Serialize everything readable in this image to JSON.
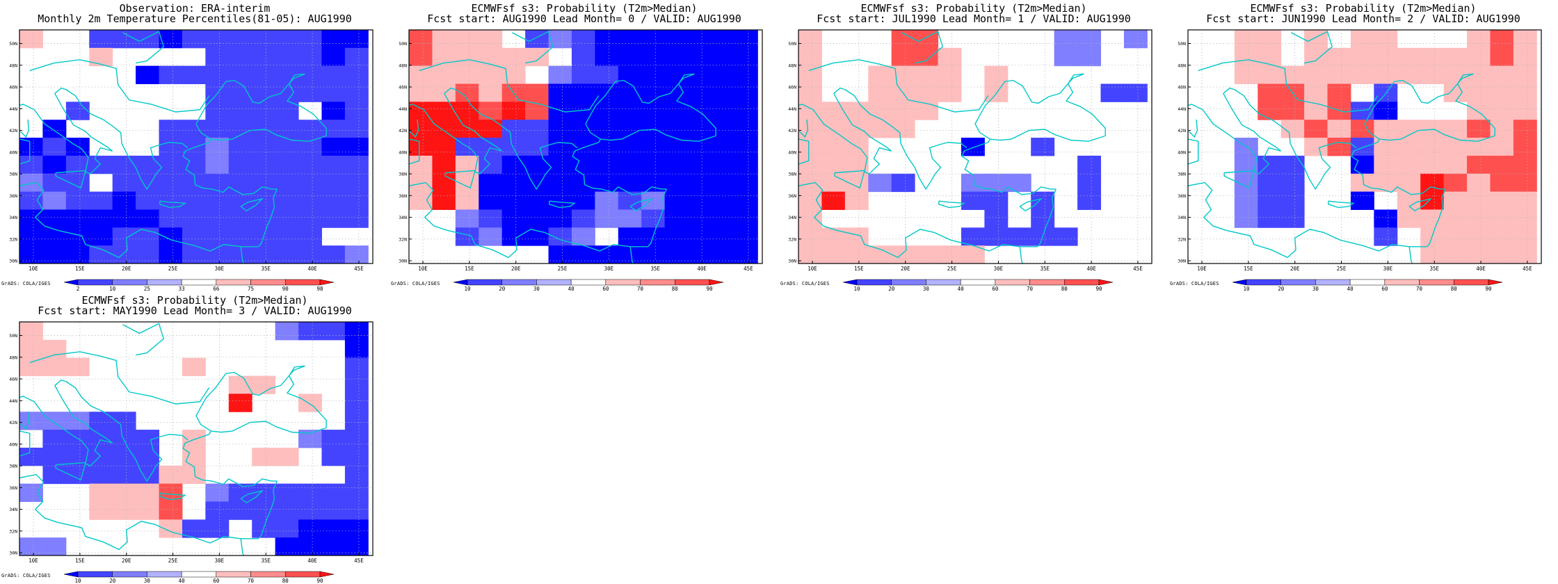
{
  "credit": "GrADS: COLA/IGES",
  "lon_ticks": [
    "10E",
    "15E",
    "20E",
    "25E",
    "30E",
    "35E",
    "40E",
    "45E"
  ],
  "lat_ticks": [
    "30N",
    "32N",
    "34N",
    "36N",
    "38N",
    "40N",
    "42N",
    "44N",
    "46N",
    "48N",
    "50N"
  ],
  "map_extent": {
    "lon": [
      8.5,
      46.5
    ],
    "lat": [
      29.75,
      51.25
    ]
  },
  "cell_size_deg": 2.5,
  "colors": {
    "coast": "#00c8c8",
    "grid": "#b4b4b4",
    "blue3": "#0000ff",
    "blue2": "#4444ff",
    "blue1": "#7f7fff",
    "blue0": "#b2b2ff",
    "white": "#ffffff",
    "red0": "#ffbebe",
    "red1": "#ff8c8c",
    "red2": "#ff5050",
    "red3": "#ff1414"
  },
  "panels": [
    {
      "title1": "Observation: ERA-interim",
      "title2": "Monthly 2m Temperature Percentiles(81-05): AUG1990",
      "legend": [
        "2",
        "10",
        "25",
        "33",
        "66",
        "75",
        "90",
        "98"
      ],
      "legend_colors": [
        "#0000ff",
        "#4444ff",
        "#7f7fff",
        "#b2b2ff",
        "#ffffff",
        "#ffbebe",
        "#ff8c8c",
        "#ff5050",
        "#ff1414"
      ],
      "grid": [
        "rwwbbbBbbbbbbBB",
        "wwwrwwwwbbbbbBb",
        "wwwwwBbbbbbbbbb",
        "wwwwwwwwbbbbbbb",
        "wwbwwwwwbbbbwBb",
        "wBwwwwbbbbbbbbb",
        "BbBwwwbbcbbbbBB",
        "bBbbbbbbcbbbbbb",
        "cbbwbbbbbbbbbbb",
        "bcbbBbbbbbbbbbb",
        "BBBBBBbbbbbbbbb",
        "BBBBbbBbbbbbbww",
        "BBBbbbBbbbbbbbc"
      ]
    },
    {
      "title1": "ECMWFsf s3: Probability (T2m>Median)",
      "title2": "Fcst start: AUG1990  Lead Month= 0 / VALID: AUG1990",
      "legend": [
        "10",
        "20",
        "30",
        "40",
        "60",
        "70",
        "80",
        "90"
      ],
      "legend_colors": [
        "#0000ff",
        "#4444ff",
        "#7f7fff",
        "#b2b2ff",
        "#ffffff",
        "#ffbebe",
        "#ff8c8c",
        "#ff5050",
        "#ff1414"
      ],
      "grid": [
        "SrrrwbcbBBBBBBB",
        "SrrrrrwbBBBBBBB",
        "rrrrrwcbbBBBBBB",
        "rrSrSSBBBBBBBBB",
        "RRRSRSBBBBBBBBB",
        "RRRRbbBBBBBBBBB",
        "RRbbbbBBBBBBBBB",
        "rRrbBBBBBBBBBBB",
        "rRrBBBBBBBBBBBB",
        "rRrBBBBBcbcBBBB",
        "wwcbBBBbccbBBBB",
        "wwbcBBbcwBBBBBB",
        "wwwwwwBBBBBBBBB"
      ]
    },
    {
      "title1": "ECMWFsf s3: Probability (T2m>Median)",
      "title2": "Fcst start: JUL1990  Lead Month= 1 / VALID: AUG1990",
      "legend": [
        "10",
        "20",
        "30",
        "40",
        "60",
        "70",
        "80",
        "90"
      ],
      "legend_colors": [
        "#0000ff",
        "#4444ff",
        "#7f7fff",
        "#b2b2ff",
        "#ffffff",
        "#ffbebe",
        "#ff8c8c",
        "#ff5050",
        "#ff1414"
      ],
      "grid": [
        "rwwwSSwwwwwccwc",
        "rwwwSSrwwwwccww",
        "rwwrrrrwrwwwwww",
        "rwwrrrrwrwwwwbb",
        "rrrrrrwwwwwwwww",
        "rrrrrwwwwwwwwww",
        "rrrwwwwBwwbwwww",
        "rrrwwwwwwwwwbww",
        "rrrcbwwcccwwbww",
        "rRrwwwwbbwbwbww",
        "rwwwwwwwbwbwwww",
        "rrrwwwwbbbbbwww",
        "rrrrrrrrwwwwwww"
      ]
    },
    {
      "title1": "ECMWFsf s3: Probability (T2m>Median)",
      "title2": "Fcst start: JUN1990  Lead Month= 2 / VALID: AUG1990",
      "legend": [
        "10",
        "20",
        "30",
        "40",
        "60",
        "70",
        "80",
        "90"
      ],
      "legend_colors": [
        "#0000ff",
        "#4444ff",
        "#7f7fff",
        "#b2b2ff",
        "#ffffff",
        "#ffbebe",
        "#ff8c8c",
        "#ff5050",
        "#ff1414"
      ],
      "grid": [
        "wwrrwrwrrwwwrSr",
        "wwrrwrrrrrrrrSr",
        "wwrrrrrrrrrrrrr",
        "wwwSSrSwbwwrrrr",
        "wwwSSrSbBwwwrrr",
        "wwwwrSrSrrrrSrS",
        "wwcwwrSbrrrrrrS",
        "wwcbbwwBrrrrSSS",
        "wwcbbwwrrrRSrSS",
        "wwcbbwwBwrRrrrr",
        "wwcbbwwwBrrrrrr",
        "wwwwwwwwbwrrrrr",
        "wwwwwwwwwwrrrrr"
      ]
    },
    {
      "title1": "ECMWFsf s3: Probability (T2m>Median)",
      "title2": "Fcst start: MAY1990  Lead Month= 3 / VALID: AUG1990",
      "legend": [
        "10",
        "20",
        "30",
        "40",
        "60",
        "70",
        "80",
        "90"
      ],
      "legend_colors": [
        "#0000ff",
        "#4444ff",
        "#7f7fff",
        "#b2b2ff",
        "#ffffff",
        "#ffbebe",
        "#ff8c8c",
        "#ff5050",
        "#ff1414"
      ],
      "grid": [
        "rwwwwwwwwwwcbbB",
        "rrwwwwwwwwwwwwB",
        "rrrwwwwrwwwwwwb",
        "wwwwwwwwwrrwwwb",
        "wwwwwwwwwRwwrwb",
        "cccbbwwwwwwwwwb",
        "wbbbbbwrwwwwcbb",
        "bbbbbbwrwwrrwbb",
        "wbbbbbrrwwwwwwb",
        "cwwrrrSwcbbbbbb",
        "wwwrrrSwbbbbbbb",
        "wwwwwwrbbwbbBBB",
        "ccwwwwwwwwwBBBB"
      ]
    }
  ]
}
